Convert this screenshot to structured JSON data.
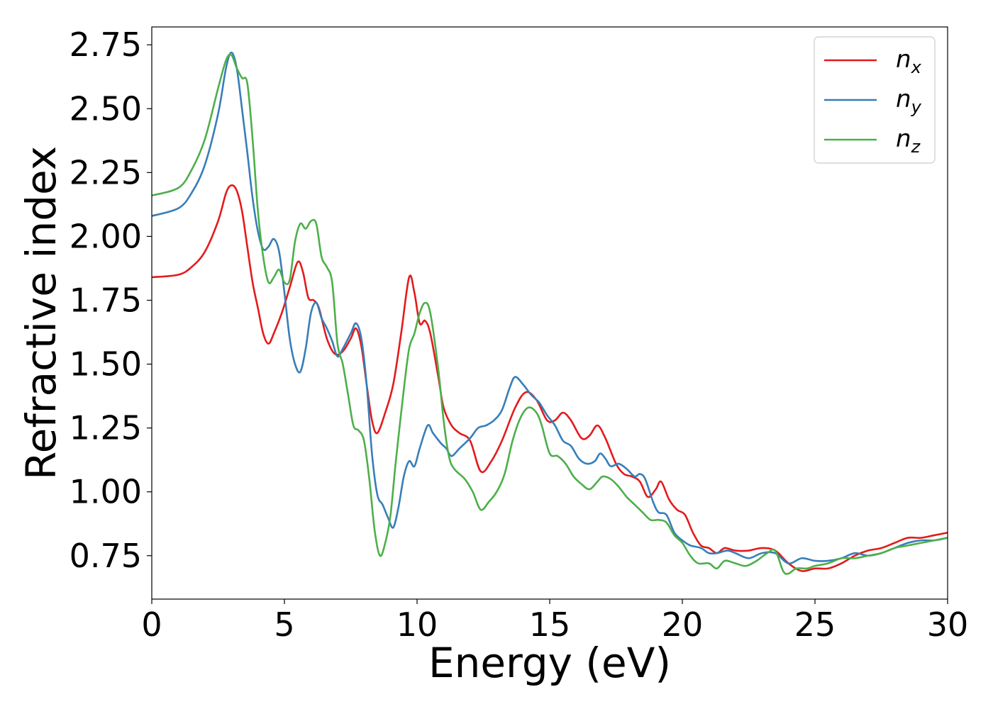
{
  "chart_data": {
    "type": "line",
    "title": "",
    "xlabel": "Energy (eV)",
    "ylabel": "Refractive index",
    "xlim": [
      0,
      30
    ],
    "ylim": [
      0.58,
      2.82
    ],
    "xticks": [
      0,
      5,
      10,
      15,
      20,
      25,
      30
    ],
    "xtick_labels": [
      "0",
      "5",
      "10",
      "15",
      "20",
      "25",
      "30"
    ],
    "yticks": [
      0.75,
      1.0,
      1.25,
      1.5,
      1.75,
      2.0,
      2.25,
      2.5,
      2.75
    ],
    "ytick_labels": [
      "0.75",
      "1.00",
      "1.25",
      "1.50",
      "1.75",
      "2.00",
      "2.25",
      "2.50",
      "2.75"
    ],
    "grid": false,
    "legend": "top-right",
    "series": [
      {
        "name": "n_x",
        "label_base": "n",
        "label_sub": "x",
        "color": "#e41a1c",
        "points": [
          [
            0,
            1.84
          ],
          [
            1,
            1.85
          ],
          [
            1.5,
            1.88
          ],
          [
            2,
            1.94
          ],
          [
            2.5,
            2.06
          ],
          [
            2.8,
            2.17
          ],
          [
            3,
            2.2
          ],
          [
            3.2,
            2.18
          ],
          [
            3.4,
            2.1
          ],
          [
            3.6,
            1.96
          ],
          [
            3.8,
            1.82
          ],
          [
            4.0,
            1.72
          ],
          [
            4.2,
            1.62
          ],
          [
            4.4,
            1.58
          ],
          [
            4.6,
            1.62
          ],
          [
            4.9,
            1.7
          ],
          [
            5.2,
            1.8
          ],
          [
            5.5,
            1.9
          ],
          [
            5.7,
            1.86
          ],
          [
            5.9,
            1.76
          ],
          [
            6.1,
            1.75
          ],
          [
            6.3,
            1.72
          ],
          [
            6.6,
            1.6
          ],
          [
            6.9,
            1.54
          ],
          [
            7.2,
            1.55
          ],
          [
            7.5,
            1.6
          ],
          [
            7.7,
            1.64
          ],
          [
            7.9,
            1.57
          ],
          [
            8.1,
            1.42
          ],
          [
            8.3,
            1.28
          ],
          [
            8.5,
            1.23
          ],
          [
            8.8,
            1.31
          ],
          [
            9.1,
            1.42
          ],
          [
            9.4,
            1.62
          ],
          [
            9.7,
            1.84
          ],
          [
            9.9,
            1.78
          ],
          [
            10.1,
            1.66
          ],
          [
            10.3,
            1.67
          ],
          [
            10.5,
            1.62
          ],
          [
            10.8,
            1.45
          ],
          [
            11.0,
            1.33
          ],
          [
            11.3,
            1.26
          ],
          [
            11.6,
            1.23
          ],
          [
            12.0,
            1.2
          ],
          [
            12.4,
            1.08
          ],
          [
            12.8,
            1.12
          ],
          [
            13.2,
            1.2
          ],
          [
            13.7,
            1.33
          ],
          [
            14.1,
            1.39
          ],
          [
            14.5,
            1.36
          ],
          [
            14.9,
            1.28
          ],
          [
            15.2,
            1.28
          ],
          [
            15.5,
            1.31
          ],
          [
            15.8,
            1.28
          ],
          [
            16.2,
            1.21
          ],
          [
            16.5,
            1.22
          ],
          [
            16.8,
            1.26
          ],
          [
            17.1,
            1.21
          ],
          [
            17.5,
            1.11
          ],
          [
            17.8,
            1.07
          ],
          [
            18.1,
            1.06
          ],
          [
            18.4,
            1.04
          ],
          [
            18.7,
            0.98
          ],
          [
            19.0,
            1.01
          ],
          [
            19.2,
            1.04
          ],
          [
            19.5,
            0.97
          ],
          [
            19.8,
            0.93
          ],
          [
            20.1,
            0.91
          ],
          [
            20.4,
            0.84
          ],
          [
            20.7,
            0.79
          ],
          [
            21.0,
            0.78
          ],
          [
            21.3,
            0.76
          ],
          [
            21.6,
            0.78
          ],
          [
            22.0,
            0.77
          ],
          [
            22.5,
            0.77
          ],
          [
            23.0,
            0.78
          ],
          [
            23.5,
            0.77
          ],
          [
            24.0,
            0.72
          ],
          [
            24.5,
            0.69
          ],
          [
            25.0,
            0.7
          ],
          [
            25.5,
            0.7
          ],
          [
            26.0,
            0.72
          ],
          [
            26.5,
            0.75
          ],
          [
            27.0,
            0.77
          ],
          [
            27.5,
            0.78
          ],
          [
            28.0,
            0.8
          ],
          [
            28.5,
            0.82
          ],
          [
            29.0,
            0.82
          ],
          [
            29.5,
            0.83
          ],
          [
            30.0,
            0.84
          ]
        ]
      },
      {
        "name": "n_y",
        "label_base": "n",
        "label_sub": "y",
        "color": "#377eb8",
        "points": [
          [
            0,
            2.08
          ],
          [
            1,
            2.11
          ],
          [
            1.5,
            2.17
          ],
          [
            2,
            2.28
          ],
          [
            2.5,
            2.48
          ],
          [
            2.8,
            2.66
          ],
          [
            3,
            2.72
          ],
          [
            3.2,
            2.66
          ],
          [
            3.4,
            2.5
          ],
          [
            3.6,
            2.33
          ],
          [
            3.8,
            2.15
          ],
          [
            4.0,
            2.02
          ],
          [
            4.2,
            1.95
          ],
          [
            4.4,
            1.96
          ],
          [
            4.6,
            1.99
          ],
          [
            4.8,
            1.94
          ],
          [
            5.0,
            1.78
          ],
          [
            5.2,
            1.6
          ],
          [
            5.4,
            1.5
          ],
          [
            5.6,
            1.47
          ],
          [
            5.8,
            1.56
          ],
          [
            6.0,
            1.7
          ],
          [
            6.2,
            1.74
          ],
          [
            6.4,
            1.68
          ],
          [
            6.6,
            1.64
          ],
          [
            6.8,
            1.59
          ],
          [
            7.0,
            1.53
          ],
          [
            7.2,
            1.56
          ],
          [
            7.5,
            1.62
          ],
          [
            7.7,
            1.66
          ],
          [
            7.9,
            1.6
          ],
          [
            8.1,
            1.42
          ],
          [
            8.3,
            1.15
          ],
          [
            8.5,
            0.99
          ],
          [
            8.7,
            0.95
          ],
          [
            8.9,
            0.9
          ],
          [
            9.1,
            0.86
          ],
          [
            9.3,
            0.94
          ],
          [
            9.5,
            1.06
          ],
          [
            9.7,
            1.12
          ],
          [
            9.9,
            1.1
          ],
          [
            10.1,
            1.17
          ],
          [
            10.4,
            1.26
          ],
          [
            10.6,
            1.23
          ],
          [
            10.9,
            1.19
          ],
          [
            11.1,
            1.17
          ],
          [
            11.3,
            1.14
          ],
          [
            11.6,
            1.17
          ],
          [
            12.0,
            1.21
          ],
          [
            12.3,
            1.25
          ],
          [
            12.6,
            1.26
          ],
          [
            12.9,
            1.28
          ],
          [
            13.2,
            1.32
          ],
          [
            13.5,
            1.41
          ],
          [
            13.7,
            1.45
          ],
          [
            14.0,
            1.42
          ],
          [
            14.3,
            1.38
          ],
          [
            14.6,
            1.35
          ],
          [
            14.9,
            1.3
          ],
          [
            15.2,
            1.26
          ],
          [
            15.5,
            1.2
          ],
          [
            15.8,
            1.18
          ],
          [
            16.1,
            1.13
          ],
          [
            16.4,
            1.11
          ],
          [
            16.7,
            1.12
          ],
          [
            16.9,
            1.15
          ],
          [
            17.1,
            1.13
          ],
          [
            17.3,
            1.1
          ],
          [
            17.6,
            1.11
          ],
          [
            17.9,
            1.09
          ],
          [
            18.2,
            1.06
          ],
          [
            18.4,
            1.07
          ],
          [
            18.6,
            1.05
          ],
          [
            18.9,
            0.96
          ],
          [
            19.1,
            0.92
          ],
          [
            19.4,
            0.91
          ],
          [
            19.7,
            0.84
          ],
          [
            20.0,
            0.81
          ],
          [
            20.3,
            0.79
          ],
          [
            20.7,
            0.78
          ],
          [
            21.0,
            0.76
          ],
          [
            21.3,
            0.76
          ],
          [
            21.7,
            0.77
          ],
          [
            22.0,
            0.76
          ],
          [
            22.5,
            0.74
          ],
          [
            23.0,
            0.76
          ],
          [
            23.5,
            0.76
          ],
          [
            24.0,
            0.72
          ],
          [
            24.5,
            0.74
          ],
          [
            25.0,
            0.73
          ],
          [
            25.5,
            0.73
          ],
          [
            26.0,
            0.74
          ],
          [
            26.5,
            0.76
          ],
          [
            27.0,
            0.75
          ],
          [
            27.5,
            0.76
          ],
          [
            28.0,
            0.78
          ],
          [
            28.5,
            0.8
          ],
          [
            29.0,
            0.81
          ],
          [
            29.5,
            0.81
          ],
          [
            30.0,
            0.82
          ]
        ]
      },
      {
        "name": "n_z",
        "label_base": "n",
        "label_sub": "z",
        "color": "#4daf4a",
        "points": [
          [
            0,
            2.16
          ],
          [
            1,
            2.19
          ],
          [
            1.5,
            2.26
          ],
          [
            2,
            2.38
          ],
          [
            2.5,
            2.58
          ],
          [
            2.8,
            2.69
          ],
          [
            3,
            2.71
          ],
          [
            3.2,
            2.66
          ],
          [
            3.4,
            2.62
          ],
          [
            3.6,
            2.6
          ],
          [
            3.8,
            2.38
          ],
          [
            4.0,
            2.1
          ],
          [
            4.2,
            1.92
          ],
          [
            4.4,
            1.82
          ],
          [
            4.6,
            1.84
          ],
          [
            4.8,
            1.87
          ],
          [
            5.0,
            1.82
          ],
          [
            5.2,
            1.83
          ],
          [
            5.4,
            1.98
          ],
          [
            5.6,
            2.05
          ],
          [
            5.8,
            2.03
          ],
          [
            6.0,
            2.06
          ],
          [
            6.2,
            2.05
          ],
          [
            6.4,
            1.92
          ],
          [
            6.6,
            1.88
          ],
          [
            6.8,
            1.82
          ],
          [
            7.0,
            1.58
          ],
          [
            7.2,
            1.5
          ],
          [
            7.4,
            1.38
          ],
          [
            7.6,
            1.26
          ],
          [
            7.8,
            1.24
          ],
          [
            8.0,
            1.2
          ],
          [
            8.2,
            1.05
          ],
          [
            8.4,
            0.85
          ],
          [
            8.6,
            0.75
          ],
          [
            8.8,
            0.8
          ],
          [
            9.0,
            0.91
          ],
          [
            9.2,
            1.12
          ],
          [
            9.5,
            1.4
          ],
          [
            9.7,
            1.56
          ],
          [
            9.9,
            1.62
          ],
          [
            10.1,
            1.7
          ],
          [
            10.3,
            1.74
          ],
          [
            10.5,
            1.7
          ],
          [
            10.8,
            1.48
          ],
          [
            11.0,
            1.28
          ],
          [
            11.2,
            1.14
          ],
          [
            11.4,
            1.09
          ],
          [
            11.8,
            1.05
          ],
          [
            12.1,
            1.0
          ],
          [
            12.4,
            0.93
          ],
          [
            12.7,
            0.96
          ],
          [
            13.0,
            1.0
          ],
          [
            13.3,
            1.07
          ],
          [
            13.6,
            1.2
          ],
          [
            13.9,
            1.29
          ],
          [
            14.2,
            1.33
          ],
          [
            14.5,
            1.31
          ],
          [
            14.7,
            1.26
          ],
          [
            15.0,
            1.15
          ],
          [
            15.3,
            1.14
          ],
          [
            15.6,
            1.11
          ],
          [
            15.9,
            1.06
          ],
          [
            16.2,
            1.03
          ],
          [
            16.5,
            1.01
          ],
          [
            16.8,
            1.04
          ],
          [
            17.0,
            1.06
          ],
          [
            17.3,
            1.05
          ],
          [
            17.6,
            1.02
          ],
          [
            17.9,
            0.98
          ],
          [
            18.2,
            0.95
          ],
          [
            18.5,
            0.92
          ],
          [
            18.8,
            0.89
          ],
          [
            19.1,
            0.89
          ],
          [
            19.4,
            0.88
          ],
          [
            19.7,
            0.83
          ],
          [
            20.0,
            0.8
          ],
          [
            20.3,
            0.75
          ],
          [
            20.6,
            0.72
          ],
          [
            21.0,
            0.72
          ],
          [
            21.3,
            0.7
          ],
          [
            21.6,
            0.73
          ],
          [
            22.0,
            0.72
          ],
          [
            22.4,
            0.71
          ],
          [
            22.8,
            0.73
          ],
          [
            23.2,
            0.76
          ],
          [
            23.5,
            0.77
          ],
          [
            23.8,
            0.69
          ],
          [
            24.0,
            0.68
          ],
          [
            24.3,
            0.7
          ],
          [
            24.7,
            0.7
          ],
          [
            25.0,
            0.71
          ],
          [
            25.5,
            0.72
          ],
          [
            26.0,
            0.74
          ],
          [
            26.5,
            0.74
          ],
          [
            27.0,
            0.75
          ],
          [
            27.5,
            0.76
          ],
          [
            28.0,
            0.78
          ],
          [
            28.5,
            0.79
          ],
          [
            29.0,
            0.8
          ],
          [
            29.5,
            0.81
          ],
          [
            30.0,
            0.82
          ]
        ]
      }
    ]
  }
}
